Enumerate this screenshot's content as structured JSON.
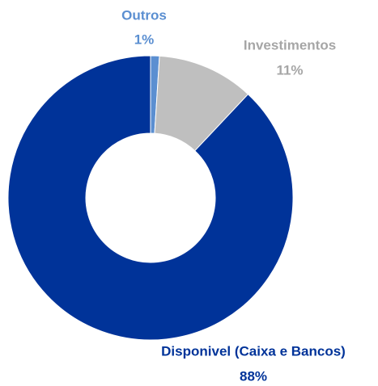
{
  "chart_data": {
    "type": "donut",
    "categories": [
      "Outros",
      "Investimentos",
      "Disponivel (Caixa e Bancos)"
    ],
    "values": [
      1,
      11,
      88
    ],
    "value_labels": [
      "1%",
      "11%",
      "88%"
    ],
    "colors": [
      "#5b8fd1",
      "#bfbfbf",
      "#003399"
    ],
    "label_colors": [
      "#5b8fd1",
      "#a6a6a6",
      "#003399"
    ]
  }
}
